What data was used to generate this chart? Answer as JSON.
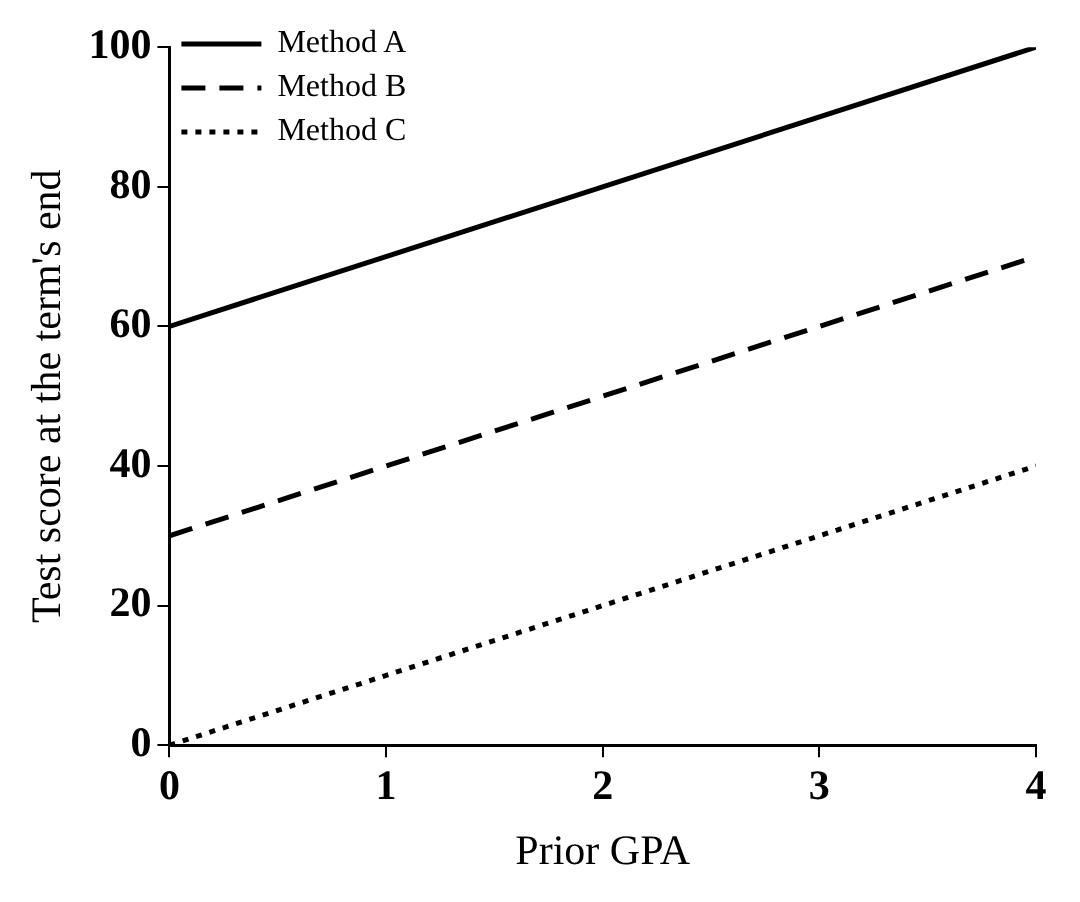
{
  "chart_data": {
    "type": "line",
    "xlabel": "Prior GPA",
    "ylabel": "Test score at the term's end",
    "x": [
      0,
      4
    ],
    "series": [
      {
        "name": "Method A",
        "color": "#000000",
        "values": [
          60,
          100
        ],
        "line_style": "solid"
      },
      {
        "name": "Method B",
        "color": "#000000",
        "values": [
          30,
          70
        ],
        "line_style": "dashed"
      },
      {
        "name": "Method C",
        "color": "#000000",
        "values": [
          0,
          40
        ],
        "line_style": "dotted"
      }
    ],
    "xlim": [
      0,
      4
    ],
    "xticks": [
      0,
      1,
      2,
      3,
      4
    ],
    "ylim": [
      0,
      100
    ],
    "yticks": [
      0,
      20,
      40,
      60,
      80,
      100
    ],
    "legend": "top left",
    "marker": "none"
  }
}
